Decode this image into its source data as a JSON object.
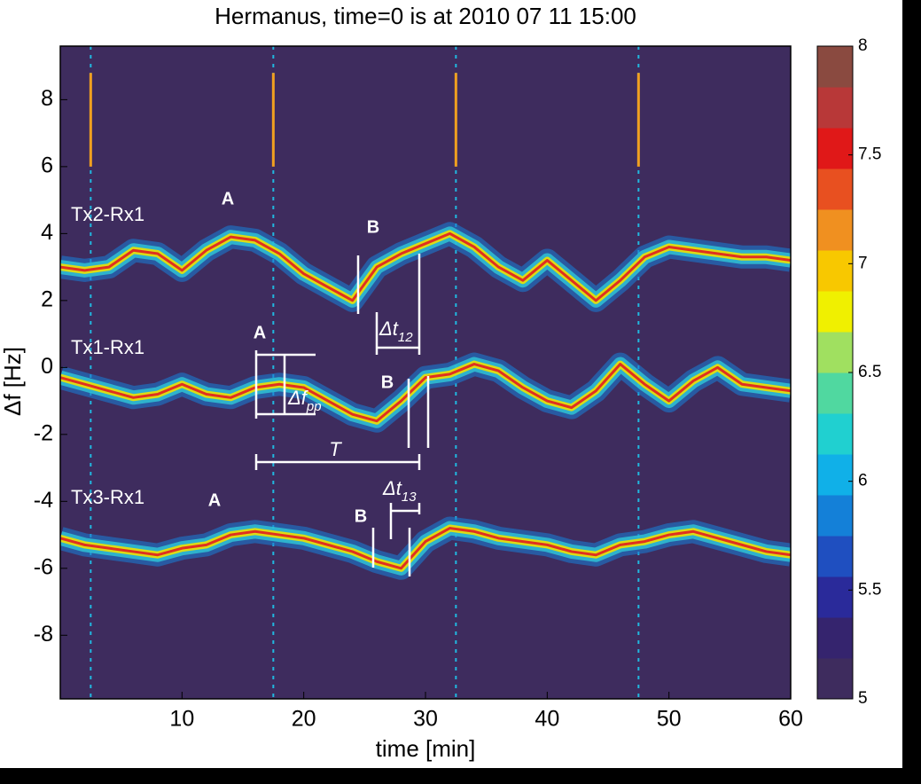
{
  "chart_data": {
    "type": "spectrogram",
    "title": "Hermanus, time=0 is at 2010 07 11 15:00",
    "x_label": "time [min]",
    "y_label": "Δf [Hz]",
    "xlim": [
      0,
      60
    ],
    "ylim": [
      -9.9,
      9.6
    ],
    "xticks": [
      10,
      20,
      30,
      40,
      50,
      60
    ],
    "yticks": [
      -8,
      -6,
      -4,
      -2,
      0,
      2,
      4,
      6,
      8
    ],
    "background": "#3e2c5e",
    "colorbar": {
      "lim": [
        5,
        8
      ],
      "ticks": [
        5,
        5.5,
        6,
        6.5,
        7,
        7.5,
        8
      ],
      "colors": [
        "#3e2c5e",
        "#35246e",
        "#2a2a9a",
        "#1f4fc0",
        "#1480d8",
        "#10b0e8",
        "#20d0d0",
        "#50d8a0",
        "#a0e060",
        "#f0f000",
        "#f8c800",
        "#f09020",
        "#e85020",
        "#e01818",
        "#b83838",
        "#8a4a40"
      ]
    },
    "pulse_times": [
      2.5,
      17.5,
      32.5,
      47.5
    ],
    "x": [
      0,
      2,
      4,
      6,
      8,
      10,
      12,
      14,
      16,
      18,
      20,
      22,
      24,
      26,
      28,
      30,
      32,
      34,
      36,
      38,
      40,
      42,
      44,
      46,
      48,
      50,
      52,
      54,
      56,
      58,
      60
    ],
    "series": [
      {
        "name": "Tx2-Rx1",
        "color": "#e03020",
        "values": [
          3.0,
          2.9,
          3.0,
          3.5,
          3.4,
          2.9,
          3.5,
          3.9,
          3.8,
          3.4,
          2.8,
          2.4,
          2.0,
          3.0,
          3.4,
          3.7,
          4.0,
          3.6,
          3.0,
          2.6,
          3.2,
          2.6,
          2.0,
          2.6,
          3.3,
          3.6,
          3.5,
          3.4,
          3.3,
          3.3,
          3.2
        ]
      },
      {
        "name": "Tx1-Rx1",
        "color": "#e03020",
        "values": [
          -0.3,
          -0.5,
          -0.7,
          -0.9,
          -0.8,
          -0.5,
          -0.8,
          -0.9,
          -0.6,
          -0.5,
          -0.6,
          -1.0,
          -1.4,
          -1.6,
          -1.0,
          -0.3,
          -0.2,
          0.1,
          -0.1,
          -0.6,
          -1.0,
          -1.2,
          -0.7,
          0.1,
          -0.5,
          -1.0,
          -0.4,
          0.0,
          -0.5,
          -0.6,
          -0.7
        ]
      },
      {
        "name": "Tx3-Rx1",
        "color": "#e03020",
        "values": [
          -5.1,
          -5.3,
          -5.4,
          -5.5,
          -5.6,
          -5.4,
          -5.3,
          -5.0,
          -4.9,
          -5.0,
          -5.1,
          -5.3,
          -5.5,
          -5.8,
          -6.0,
          -5.2,
          -4.8,
          -4.9,
          -5.1,
          -5.2,
          -5.3,
          -5.5,
          -5.6,
          -5.3,
          -5.2,
          -5.0,
          -4.9,
          -5.1,
          -5.3,
          -5.5,
          -5.6
        ]
      }
    ],
    "annotations": {
      "a": "A",
      "b": "B",
      "period": "T",
      "dt12": {
        "text": "Δt",
        "sub": "12"
      },
      "dt13": {
        "text": "Δt",
        "sub": "13"
      },
      "dfpp": {
        "text": "Δf",
        "sub": "pp"
      }
    }
  }
}
